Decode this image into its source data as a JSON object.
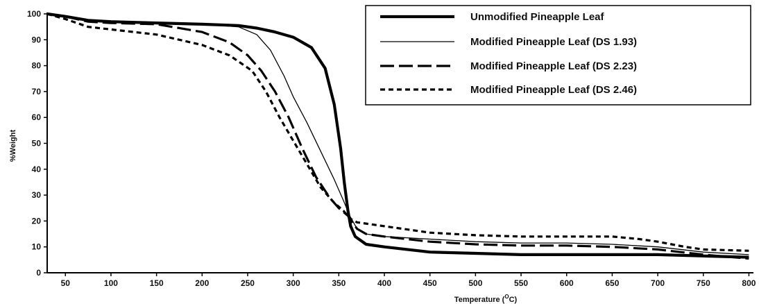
{
  "chart_data": {
    "type": "line",
    "title": "",
    "xlabel": "Temperature (",
    "xlabel_unit": "C)",
    "xlabel_superscript": "O",
    "ylabel": "%Weight",
    "xlim": [
      30,
      805
    ],
    "ylim": [
      0,
      100
    ],
    "x_ticks": [
      50,
      100,
      150,
      200,
      250,
      300,
      350,
      400,
      450,
      500,
      550,
      600,
      650,
      700,
      750,
      800
    ],
    "y_ticks": [
      0,
      10,
      20,
      30,
      40,
      50,
      60,
      70,
      80,
      90,
      100
    ],
    "grid": false,
    "legend_position": "top-right",
    "series": [
      {
        "name": "Unmodified Pineapple Leaf",
        "style": "thick-solid",
        "points": [
          [
            30,
            100
          ],
          [
            50,
            99
          ],
          [
            75,
            97.5
          ],
          [
            100,
            97
          ],
          [
            150,
            96.5
          ],
          [
            200,
            96
          ],
          [
            240,
            95.5
          ],
          [
            260,
            94.5
          ],
          [
            280,
            93
          ],
          [
            300,
            91
          ],
          [
            320,
            87
          ],
          [
            335,
            79
          ],
          [
            345,
            65
          ],
          [
            352,
            48
          ],
          [
            356,
            35
          ],
          [
            360,
            24
          ],
          [
            363,
            18
          ],
          [
            368,
            14
          ],
          [
            380,
            11
          ],
          [
            400,
            10
          ],
          [
            450,
            8
          ],
          [
            500,
            7.5
          ],
          [
            550,
            7
          ],
          [
            600,
            7
          ],
          [
            650,
            7
          ],
          [
            700,
            7
          ],
          [
            750,
            6.5
          ],
          [
            800,
            6
          ]
        ]
      },
      {
        "name": "Modified Pineapple Leaf (DS 1.93)",
        "style": "thin-solid",
        "points": [
          [
            30,
            100
          ],
          [
            50,
            99
          ],
          [
            75,
            97.5
          ],
          [
            100,
            97
          ],
          [
            150,
            96.5
          ],
          [
            200,
            96
          ],
          [
            240,
            95
          ],
          [
            260,
            92
          ],
          [
            275,
            86
          ],
          [
            290,
            76
          ],
          [
            300,
            68
          ],
          [
            315,
            58
          ],
          [
            330,
            47
          ],
          [
            345,
            36
          ],
          [
            355,
            28
          ],
          [
            362,
            22
          ],
          [
            370,
            17
          ],
          [
            380,
            15
          ],
          [
            400,
            14
          ],
          [
            450,
            13
          ],
          [
            500,
            12
          ],
          [
            550,
            11.5
          ],
          [
            600,
            11.5
          ],
          [
            650,
            11
          ],
          [
            700,
            10
          ],
          [
            750,
            8
          ],
          [
            800,
            7
          ]
        ]
      },
      {
        "name": "Modified Pineapple Leaf (DS 2.23)",
        "style": "long-dash",
        "points": [
          [
            30,
            100
          ],
          [
            50,
            99
          ],
          [
            75,
            97
          ],
          [
            100,
            96.5
          ],
          [
            150,
            96
          ],
          [
            200,
            93
          ],
          [
            230,
            89
          ],
          [
            250,
            84
          ],
          [
            265,
            78
          ],
          [
            280,
            70
          ],
          [
            295,
            60
          ],
          [
            310,
            48
          ],
          [
            325,
            37
          ],
          [
            340,
            29
          ],
          [
            350,
            25
          ],
          [
            360,
            22
          ],
          [
            370,
            17
          ],
          [
            380,
            15
          ],
          [
            400,
            14
          ],
          [
            450,
            12
          ],
          [
            500,
            11
          ],
          [
            550,
            10.5
          ],
          [
            600,
            10.5
          ],
          [
            650,
            10
          ],
          [
            700,
            9
          ],
          [
            750,
            7
          ],
          [
            800,
            5.5
          ]
        ]
      },
      {
        "name": "Modified Pineapple Leaf (DS 2.46)",
        "style": "short-dash",
        "points": [
          [
            30,
            100
          ],
          [
            50,
            98
          ],
          [
            75,
            95
          ],
          [
            100,
            94
          ],
          [
            150,
            92
          ],
          [
            200,
            88
          ],
          [
            230,
            84
          ],
          [
            255,
            78
          ],
          [
            270,
            70
          ],
          [
            285,
            60
          ],
          [
            300,
            51
          ],
          [
            315,
            42
          ],
          [
            330,
            33
          ],
          [
            345,
            27
          ],
          [
            355,
            24
          ],
          [
            362,
            21
          ],
          [
            370,
            19.5
          ],
          [
            400,
            18
          ],
          [
            450,
            15.5
          ],
          [
            500,
            14.5
          ],
          [
            550,
            14
          ],
          [
            600,
            14
          ],
          [
            650,
            14
          ],
          [
            680,
            13
          ],
          [
            700,
            12
          ],
          [
            730,
            10
          ],
          [
            750,
            9
          ],
          [
            800,
            8.5
          ]
        ]
      }
    ]
  }
}
